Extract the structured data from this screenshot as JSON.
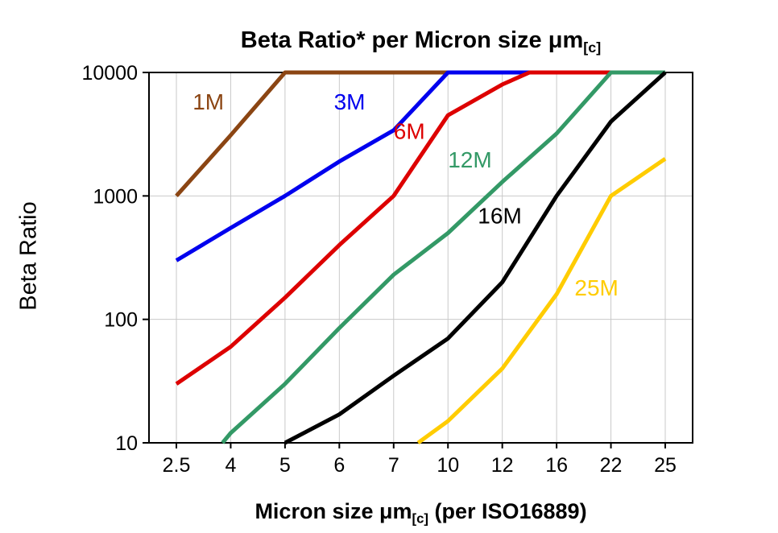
{
  "title": {
    "main": "Beta Ratio* per Micron size ",
    "mu": "μm",
    "sub": "[c]"
  },
  "y_axis_label": "Beta Ratio",
  "x_axis_label": {
    "pre": "Micron size ",
    "mu": "μm",
    "sub": "[c]",
    "post": " (per ISO16889)"
  },
  "chart_data": {
    "type": "line",
    "x_scale": "categorical",
    "y_scale": "log",
    "ylim": [
      10,
      10000
    ],
    "y_ticks": [
      10,
      100,
      1000,
      10000
    ],
    "categories": [
      "2.5",
      "4",
      "5",
      "6",
      "7",
      "10",
      "12",
      "16",
      "22",
      "25"
    ],
    "grid": true,
    "grid_color": "#c9c9c9",
    "border_color": "#000000",
    "series": [
      {
        "name": "1M",
        "color": "#8B4513",
        "points": [
          [
            0,
            1000
          ],
          [
            1,
            3100
          ],
          [
            2,
            10000
          ],
          [
            5,
            10000
          ]
        ],
        "label_pos": [
          0.3,
          5000
        ]
      },
      {
        "name": "3M",
        "color": "#0000EE",
        "points": [
          [
            0,
            300
          ],
          [
            1,
            550
          ],
          [
            2,
            1000
          ],
          [
            3,
            1900
          ],
          [
            4,
            3400
          ],
          [
            5,
            10000
          ],
          [
            7,
            10000
          ]
        ],
        "label_pos": [
          2.9,
          5000
        ]
      },
      {
        "name": "6M",
        "color": "#DD0000",
        "points": [
          [
            0,
            30
          ],
          [
            1,
            60
          ],
          [
            2,
            150
          ],
          [
            3,
            400
          ],
          [
            4,
            1000
          ],
          [
            5,
            4500
          ],
          [
            6,
            8000
          ],
          [
            6.5,
            10000
          ],
          [
            8,
            10000
          ]
        ],
        "label_pos": [
          4.0,
          2900
        ]
      },
      {
        "name": "12M",
        "color": "#339966",
        "points": [
          [
            0.85,
            10
          ],
          [
            1,
            12
          ],
          [
            2,
            30
          ],
          [
            3,
            85
          ],
          [
            4,
            230
          ],
          [
            5,
            500
          ],
          [
            6,
            1300
          ],
          [
            7,
            3200
          ],
          [
            8,
            10000
          ],
          [
            9,
            10000
          ]
        ],
        "label_pos": [
          5.0,
          1700
        ]
      },
      {
        "name": "16M",
        "color": "#000000",
        "points": [
          [
            2,
            10
          ],
          [
            3,
            17
          ],
          [
            4,
            35
          ],
          [
            5,
            70
          ],
          [
            6,
            200
          ],
          [
            7,
            1000
          ],
          [
            8,
            4000
          ],
          [
            9,
            10000
          ]
        ],
        "label_pos": [
          5.55,
          600
        ]
      },
      {
        "name": "25M",
        "color": "#FFCC00",
        "points": [
          [
            4.45,
            10
          ],
          [
            5,
            15
          ],
          [
            6,
            40
          ],
          [
            7,
            160
          ],
          [
            8,
            1000
          ],
          [
            9,
            2000
          ]
        ],
        "label_pos": [
          7.33,
          156
        ]
      }
    ]
  }
}
